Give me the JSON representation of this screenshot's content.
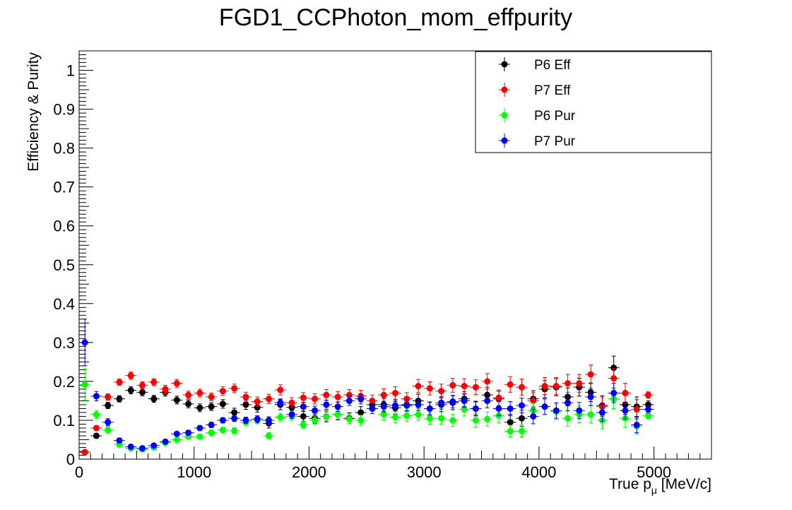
{
  "chart_data": {
    "type": "scatter",
    "title": "FGD1_CCPhoton_mom_effpurity",
    "xlabel": {
      "main": "True p",
      "sub": "μ",
      "unit": " [MeV/c]"
    },
    "ylabel": "Efficiency & Purity",
    "xlim": [
      0,
      5500
    ],
    "ylim": [
      0,
      1.05
    ],
    "x_ticks": [
      0,
      1000,
      2000,
      3000,
      4000,
      5000
    ],
    "x_tick_labels": [
      "0",
      "1000",
      "2000",
      "3000",
      "4000",
      "5000"
    ],
    "y_ticks": [
      0,
      0.1,
      0.2,
      0.3,
      0.4,
      0.5,
      0.6,
      0.7,
      0.8,
      0.9,
      1
    ],
    "y_tick_labels": [
      "0",
      "0.1",
      "0.2",
      "0.3",
      "0.4",
      "0.5",
      "0.6",
      "0.7",
      "0.8",
      "0.9",
      "1"
    ],
    "x_bin_half_width": 50,
    "legend_position": "top-right",
    "grid": false,
    "series": [
      {
        "name": "P6 Eff",
        "color": "#000000",
        "x": [
          50,
          150,
          250,
          350,
          450,
          550,
          650,
          750,
          850,
          950,
          1050,
          1150,
          1250,
          1350,
          1450,
          1550,
          1650,
          1750,
          1850,
          1950,
          2050,
          2150,
          2250,
          2350,
          2450,
          2550,
          2650,
          2750,
          2850,
          2950,
          3050,
          3150,
          3250,
          3350,
          3450,
          3550,
          3650,
          3750,
          3850,
          3950,
          4050,
          4150,
          4250,
          4350,
          4450,
          4550,
          4650,
          4750,
          4850,
          4950
        ],
        "y": [
          0.018,
          0.06,
          0.138,
          0.155,
          0.177,
          0.172,
          0.155,
          0.172,
          0.152,
          0.142,
          0.132,
          0.135,
          0.142,
          0.12,
          0.14,
          0.133,
          0.092,
          0.14,
          0.133,
          0.11,
          0.105,
          0.11,
          0.115,
          0.105,
          0.12,
          0.14,
          0.14,
          0.132,
          0.14,
          0.15,
          0.13,
          0.14,
          0.145,
          0.155,
          0.13,
          0.165,
          0.155,
          0.095,
          0.105,
          0.155,
          0.18,
          0.185,
          0.16,
          0.185,
          0.172,
          0.138,
          0.235,
          0.14,
          0.135,
          0.14
        ],
        "yerr": [
          0.003,
          0.006,
          0.008,
          0.008,
          0.009,
          0.009,
          0.009,
          0.01,
          0.01,
          0.01,
          0.01,
          0.01,
          0.011,
          0.011,
          0.012,
          0.012,
          0.012,
          0.013,
          0.013,
          0.013,
          0.013,
          0.014,
          0.014,
          0.014,
          0.015,
          0.015,
          0.016,
          0.016,
          0.016,
          0.017,
          0.017,
          0.018,
          0.018,
          0.019,
          0.019,
          0.02,
          0.02,
          0.02,
          0.021,
          0.021,
          0.022,
          0.022,
          0.023,
          0.023,
          0.024,
          0.025,
          0.03,
          0.025,
          0.025,
          0.01
        ]
      },
      {
        "name": "P7 Eff",
        "color": "#ff0000",
        "x": [
          50,
          150,
          250,
          350,
          450,
          550,
          650,
          750,
          850,
          950,
          1050,
          1150,
          1250,
          1350,
          1450,
          1550,
          1650,
          1750,
          1850,
          1950,
          2050,
          2150,
          2250,
          2350,
          2450,
          2550,
          2650,
          2750,
          2850,
          2950,
          3050,
          3150,
          3250,
          3350,
          3450,
          3550,
          3650,
          3750,
          3850,
          3950,
          4050,
          4150,
          4250,
          4350,
          4450,
          4550,
          4650,
          4750,
          4850,
          4950
        ],
        "y": [
          0.018,
          0.08,
          0.16,
          0.198,
          0.215,
          0.19,
          0.198,
          0.18,
          0.195,
          0.165,
          0.17,
          0.16,
          0.175,
          0.182,
          0.16,
          0.148,
          0.155,
          0.178,
          0.145,
          0.158,
          0.155,
          0.165,
          0.16,
          0.165,
          0.162,
          0.15,
          0.165,
          0.17,
          0.155,
          0.188,
          0.182,
          0.175,
          0.19,
          0.188,
          0.185,
          0.2,
          0.158,
          0.192,
          0.185,
          0.15,
          0.188,
          0.188,
          0.195,
          0.195,
          0.218,
          0.135,
          0.208,
          0.17,
          0.128,
          0.165
        ],
        "yerr": [
          0.003,
          0.006,
          0.008,
          0.008,
          0.009,
          0.009,
          0.009,
          0.01,
          0.01,
          0.01,
          0.01,
          0.01,
          0.011,
          0.011,
          0.012,
          0.012,
          0.012,
          0.013,
          0.013,
          0.013,
          0.013,
          0.014,
          0.014,
          0.014,
          0.015,
          0.015,
          0.016,
          0.016,
          0.016,
          0.017,
          0.017,
          0.018,
          0.018,
          0.019,
          0.019,
          0.02,
          0.02,
          0.02,
          0.021,
          0.021,
          0.022,
          0.022,
          0.023,
          0.023,
          0.024,
          0.025,
          0.025,
          0.025,
          0.025,
          0.008
        ]
      },
      {
        "name": "P6 Pur",
        "color": "#00ff00",
        "x": [
          50,
          150,
          250,
          350,
          450,
          550,
          650,
          750,
          850,
          950,
          1050,
          1150,
          1250,
          1350,
          1450,
          1550,
          1650,
          1750,
          1850,
          1950,
          2050,
          2150,
          2250,
          2350,
          2450,
          2550,
          2650,
          2750,
          2850,
          2950,
          3050,
          3150,
          3250,
          3350,
          3450,
          3550,
          3650,
          3750,
          3850,
          3950,
          4050,
          4150,
          4250,
          4350,
          4450,
          4550,
          4650,
          4750,
          4850,
          4950
        ],
        "y": [
          0.192,
          0.115,
          0.075,
          0.038,
          0.028,
          0.025,
          0.03,
          0.042,
          0.05,
          0.058,
          0.058,
          0.068,
          0.075,
          0.073,
          0.095,
          0.1,
          0.06,
          0.108,
          0.11,
          0.088,
          0.1,
          0.11,
          0.115,
          0.103,
          0.1,
          0.13,
          0.115,
          0.108,
          0.112,
          0.115,
          0.105,
          0.105,
          0.1,
          0.128,
          0.1,
          0.103,
          0.112,
          0.072,
          0.072,
          0.125,
          0.135,
          0.122,
          0.105,
          0.115,
          0.115,
          0.1,
          0.155,
          0.105,
          0.085,
          0.112
        ],
        "yerr": [
          0.04,
          0.01,
          0.008,
          0.006,
          0.005,
          0.004,
          0.004,
          0.005,
          0.005,
          0.006,
          0.006,
          0.007,
          0.007,
          0.008,
          0.008,
          0.009,
          0.008,
          0.01,
          0.01,
          0.01,
          0.011,
          0.011,
          0.012,
          0.012,
          0.013,
          0.013,
          0.014,
          0.014,
          0.014,
          0.015,
          0.015,
          0.016,
          0.016,
          0.017,
          0.017,
          0.018,
          0.018,
          0.015,
          0.015,
          0.019,
          0.02,
          0.02,
          0.02,
          0.021,
          0.022,
          0.022,
          0.025,
          0.022,
          0.02,
          0.008
        ]
      },
      {
        "name": "P7 Pur",
        "color": "#0000ff",
        "x": [
          50,
          150,
          250,
          350,
          450,
          550,
          650,
          750,
          850,
          950,
          1050,
          1150,
          1250,
          1350,
          1450,
          1550,
          1650,
          1750,
          1850,
          1950,
          2050,
          2150,
          2250,
          2350,
          2450,
          2550,
          2650,
          2750,
          2850,
          2950,
          3050,
          3150,
          3250,
          3350,
          3450,
          3550,
          3650,
          3750,
          3850,
          3950,
          4050,
          4150,
          4250,
          4350,
          4450,
          4550,
          4650,
          4750,
          4850,
          4950
        ],
        "y": [
          0.3,
          0.162,
          0.095,
          0.048,
          0.032,
          0.028,
          0.035,
          0.045,
          0.065,
          0.068,
          0.08,
          0.088,
          0.1,
          0.105,
          0.1,
          0.103,
          0.1,
          0.145,
          0.115,
          0.135,
          0.125,
          0.14,
          0.135,
          0.15,
          0.155,
          0.13,
          0.135,
          0.138,
          0.138,
          0.14,
          0.13,
          0.145,
          0.148,
          0.15,
          0.13,
          0.15,
          0.13,
          0.13,
          0.138,
          0.11,
          0.135,
          0.125,
          0.145,
          0.125,
          0.16,
          0.12,
          0.17,
          0.125,
          0.088,
          0.128
        ],
        "yerr": [
          0.06,
          0.012,
          0.009,
          0.006,
          0.005,
          0.004,
          0.004,
          0.005,
          0.005,
          0.006,
          0.006,
          0.007,
          0.007,
          0.008,
          0.008,
          0.009,
          0.009,
          0.01,
          0.01,
          0.011,
          0.011,
          0.012,
          0.012,
          0.012,
          0.013,
          0.013,
          0.014,
          0.014,
          0.015,
          0.015,
          0.016,
          0.016,
          0.016,
          0.017,
          0.017,
          0.018,
          0.018,
          0.018,
          0.019,
          0.019,
          0.02,
          0.02,
          0.021,
          0.021,
          0.022,
          0.022,
          0.025,
          0.022,
          0.02,
          0.008
        ]
      }
    ]
  }
}
